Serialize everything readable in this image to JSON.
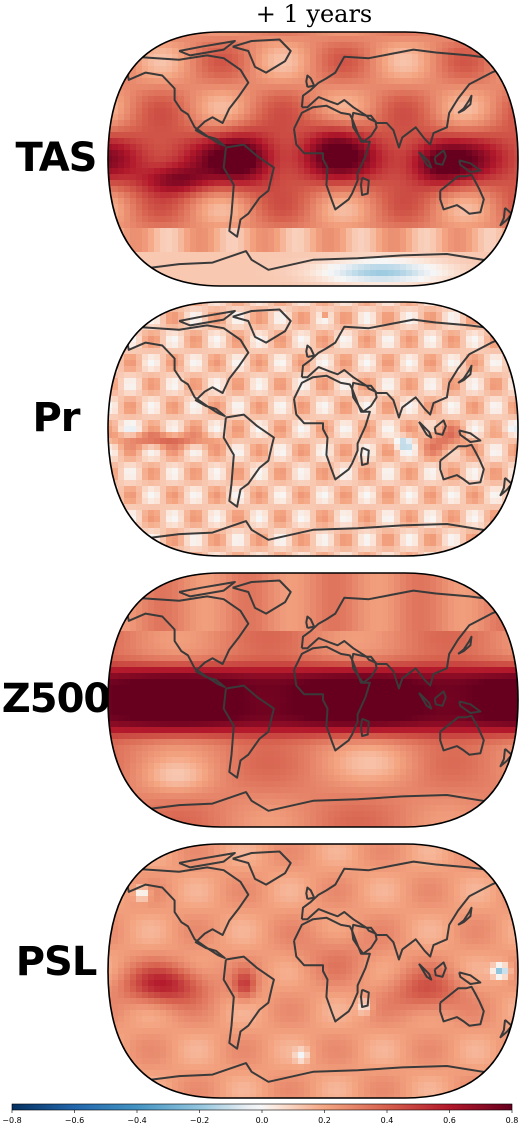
{
  "title": "+ 1 years",
  "panels": [
    {
      "label": "TAS",
      "field": "tas"
    },
    {
      "label": "Pr",
      "field": "pr"
    },
    {
      "label": "Z500",
      "field": "z500"
    },
    {
      "label": "PSL",
      "field": "psl"
    }
  ],
  "colorbar": {
    "colormap": "RdBu_r",
    "range": [
      -0.8,
      0.8
    ],
    "ticks": [
      "−0.8",
      "−0.6",
      "−0.4",
      "−0.2",
      "0.0",
      "0.2",
      "0.4",
      "0.6",
      "0.8"
    ],
    "colors": {
      "negative_end": "#053061",
      "negative_mid": "#4393c3",
      "neutral": "#f7f7f7",
      "positive_mid": "#f4a582",
      "positive_end": "#67001f"
    }
  },
  "coastline_color": "#3a3a3a"
}
